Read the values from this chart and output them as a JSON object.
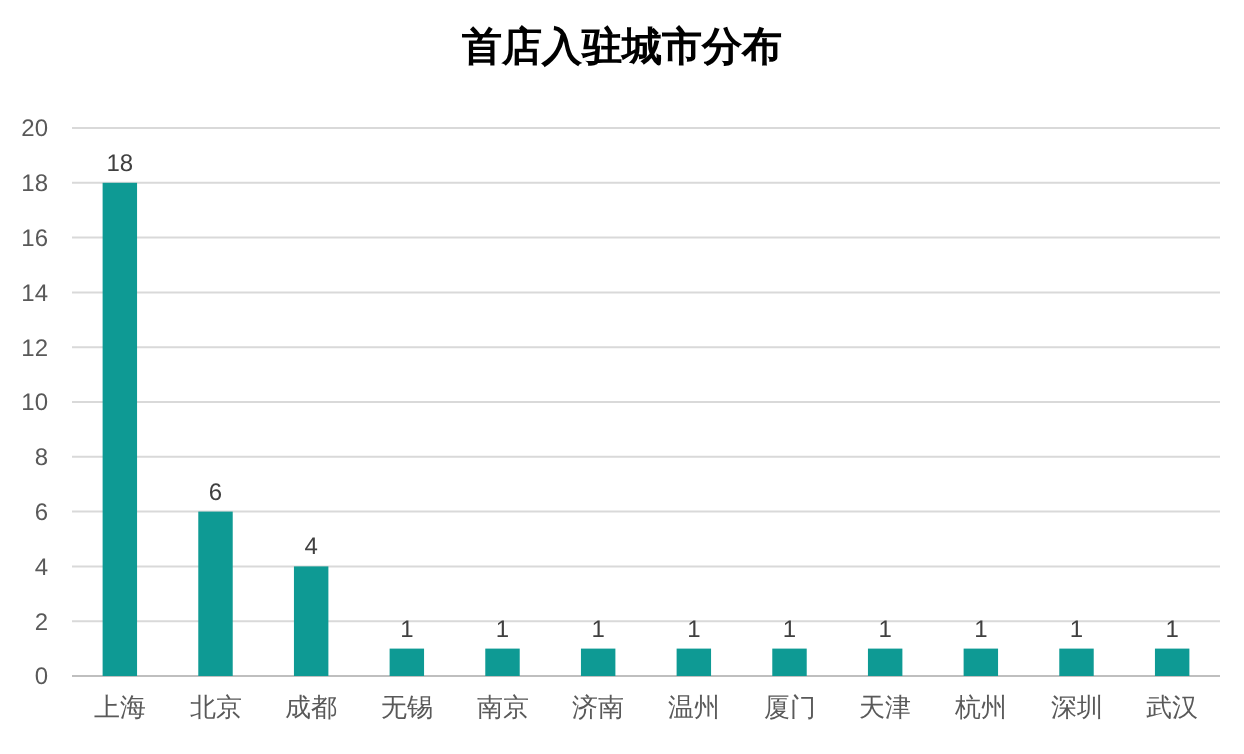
{
  "chart_data": {
    "type": "bar",
    "title": "首店入驻城市分布",
    "categories": [
      "上海",
      "北京",
      "成都",
      "无锡",
      "南京",
      "济南",
      "温州",
      "厦门",
      "天津",
      "杭州",
      "深圳",
      "武汉"
    ],
    "values": [
      18,
      6,
      4,
      1,
      1,
      1,
      1,
      1,
      1,
      1,
      1,
      1
    ],
    "color": "#0e9a94",
    "ylim": [
      0,
      20
    ],
    "yticks": [
      0,
      2,
      4,
      6,
      8,
      10,
      12,
      14,
      16,
      18,
      20
    ],
    "grid": "y",
    "data_labels": true
  }
}
